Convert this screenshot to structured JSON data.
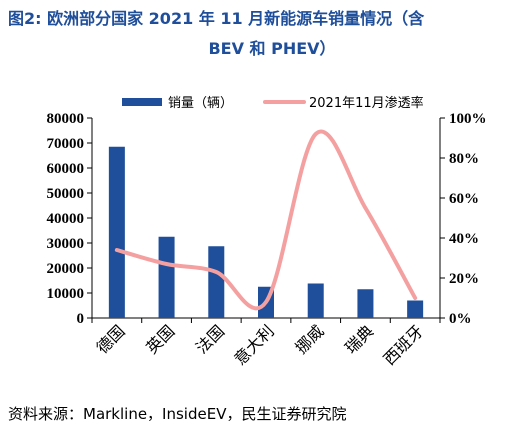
{
  "figure": {
    "title_line1": "图2: 欧洲部分国家 2021 年 11 月新能源车销量情况（含",
    "title_line2": "BEV 和 PHEV）",
    "source": "资料来源：Markline，InsideEV，民生证券研究院"
  },
  "colors": {
    "title": "#1f4e9a",
    "bar": "#1f4e9a",
    "line": "#f4a0a0"
  },
  "chart_data": {
    "type": "bar+line",
    "categories": [
      "德国",
      "英国",
      "法国",
      "意大利",
      "挪威",
      "瑞典",
      "西班牙"
    ],
    "series": [
      {
        "name": "销量（辆）",
        "type": "bar",
        "axis": "left",
        "values": [
          68500,
          32500,
          28700,
          12500,
          13800,
          11500,
          7000
        ]
      },
      {
        "name": "2021年11月渗透率",
        "type": "line",
        "smooth": true,
        "axis": "right",
        "values": [
          0.34,
          0.27,
          0.23,
          0.08,
          0.92,
          0.55,
          0.1
        ]
      }
    ],
    "y_left": {
      "min": 0,
      "max": 80000,
      "ticks": [
        0,
        10000,
        20000,
        30000,
        40000,
        50000,
        60000,
        70000,
        80000
      ],
      "tick_labels": [
        "0",
        "10000",
        "20000",
        "30000",
        "40000",
        "50000",
        "60000",
        "70000",
        "80000"
      ]
    },
    "y_right": {
      "min": 0,
      "max": 1,
      "ticks": [
        0,
        0.2,
        0.4,
        0.6,
        0.8,
        1.0
      ],
      "tick_labels": [
        "0%",
        "20%",
        "40%",
        "60%",
        "80%",
        "100%"
      ]
    },
    "grid": false,
    "legend_position": "top"
  }
}
